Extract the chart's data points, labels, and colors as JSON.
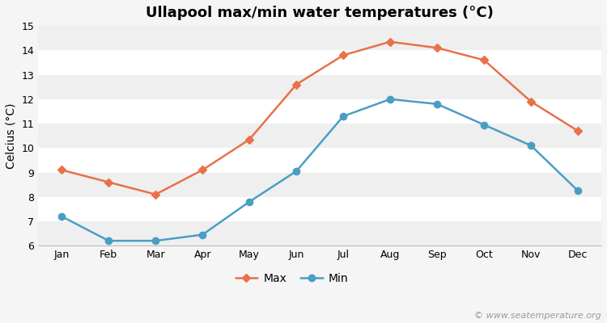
{
  "title": "Ullapool max/min water temperatures (°C)",
  "ylabel": "Celcius (°C)",
  "months": [
    "Jan",
    "Feb",
    "Mar",
    "Apr",
    "May",
    "Jun",
    "Jul",
    "Aug",
    "Sep",
    "Oct",
    "Nov",
    "Dec"
  ],
  "max_temps": [
    9.1,
    8.6,
    8.1,
    9.1,
    10.35,
    12.6,
    13.8,
    14.35,
    14.1,
    13.6,
    11.9,
    10.7
  ],
  "min_temps": [
    7.2,
    6.2,
    6.2,
    6.45,
    7.8,
    9.05,
    11.3,
    12.0,
    11.8,
    10.95,
    10.1,
    8.25
  ],
  "max_color": "#e8714a",
  "min_color": "#4a9ec4",
  "background_color": "#f5f5f5",
  "band_color_light": "#efefef",
  "band_color_white": "#ffffff",
  "ylim": [
    6,
    15
  ],
  "yticks": [
    6,
    7,
    8,
    9,
    10,
    11,
    12,
    13,
    14,
    15
  ],
  "legend_labels": [
    "Max",
    "Min"
  ],
  "watermark": "© www.seatemperature.org",
  "title_fontsize": 13,
  "label_fontsize": 10,
  "tick_fontsize": 9,
  "legend_fontsize": 10,
  "watermark_fontsize": 8
}
